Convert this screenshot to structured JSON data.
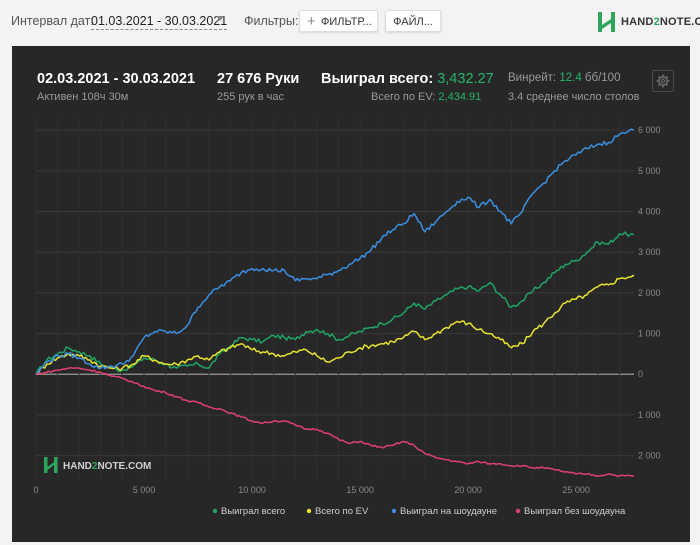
{
  "filters": {
    "date_label": "Интервал дат:",
    "date_range": "01.03.2021 - 30.03.2021",
    "filters_label": "Фильтры:",
    "filter_button": "ФИЛЬТР...",
    "file_button": "ФАЙЛ..."
  },
  "logo": {
    "pre": "HAND",
    "two": "2",
    "post": "NOTE.COM"
  },
  "stats": {
    "period": "02.03.2021 - 30.03.2021",
    "active": "Активен 108ч 30м",
    "hands": "27 676 Руки",
    "hands_per_hour": "255 рук в час",
    "won_total_label": "Выиграл всего:",
    "won_total_value": "3,432.27",
    "ev_label": "Всего по EV:",
    "ev_value": "2,434.91",
    "winrate_label": "Винрейт:",
    "winrate_value": "12.4",
    "winrate_unit": "бб/100",
    "tables_avg": "3.4 среднее число столов"
  },
  "icons": {
    "settings": "gear-icon",
    "plus": "plus-icon",
    "caret": "chevron-down-icon"
  },
  "watermark": {
    "pre": "HAND",
    "two": "2",
    "post": "NOTE.COM"
  },
  "chart_data": {
    "type": "line",
    "x_label": "",
    "y_label": "",
    "xlim": [
      0,
      27676
    ],
    "ylim": [
      -2600,
      6300
    ],
    "x_ticks": [
      0,
      5000,
      10000,
      15000,
      20000,
      25000
    ],
    "x_tick_labels": [
      "0",
      "5 000",
      "10 000",
      "15 000",
      "20 000",
      "25 000"
    ],
    "y_ticks": [
      6000,
      5000,
      4000,
      3000,
      2000,
      1000,
      0,
      -1000,
      -2000
    ],
    "y_tick_labels": [
      "6 000",
      "5 000",
      "4 000",
      "3 000",
      "2 000",
      "1 000",
      "0",
      "1 000",
      "2 000"
    ],
    "grid": true,
    "legend_position": "bottom",
    "series": [
      {
        "name": "Выиграл всего",
        "color": "#1fa463",
        "x": [
          0,
          500,
          1000,
          1500,
          2000,
          2500,
          3000,
          3500,
          4000,
          4500,
          5000,
          5500,
          6000,
          6500,
          7000,
          7500,
          8000,
          8500,
          9000,
          9500,
          10000,
          10500,
          11000,
          11500,
          12000,
          12500,
          13000,
          13500,
          14000,
          14500,
          15000,
          15500,
          16000,
          16500,
          17000,
          17500,
          18000,
          18500,
          19000,
          19500,
          20000,
          20500,
          21000,
          21500,
          22000,
          22500,
          23000,
          23500,
          24000,
          24500,
          25000,
          25500,
          26000,
          26500,
          27000,
          27676
        ],
        "y": [
          0,
          350,
          500,
          650,
          550,
          450,
          250,
          150,
          100,
          200,
          400,
          350,
          250,
          150,
          200,
          250,
          150,
          500,
          700,
          900,
          850,
          800,
          950,
          900,
          850,
          1050,
          1100,
          1000,
          850,
          950,
          1050,
          1150,
          1250,
          1350,
          1500,
          1750,
          1600,
          1800,
          1950,
          2100,
          2150,
          2050,
          2250,
          1950,
          1650,
          1800,
          2050,
          2250,
          2500,
          2700,
          2800,
          3000,
          3250,
          3200,
          3450,
          3432
        ]
      },
      {
        "name": "Всего по EV",
        "color": "#e6e32f",
        "x": [
          0,
          500,
          1000,
          1500,
          2000,
          2500,
          3000,
          3500,
          4000,
          4500,
          5000,
          5500,
          6000,
          6500,
          7000,
          7500,
          8000,
          8500,
          9000,
          9500,
          10000,
          10500,
          11000,
          11500,
          12000,
          12500,
          13000,
          13500,
          14000,
          14500,
          15000,
          15500,
          16000,
          16500,
          17000,
          17500,
          18000,
          18500,
          19000,
          19500,
          20000,
          20500,
          21000,
          21500,
          22000,
          22500,
          23000,
          23500,
          24000,
          24500,
          25000,
          25500,
          26000,
          26500,
          27000,
          27676
        ],
        "y": [
          0,
          250,
          400,
          500,
          450,
          350,
          200,
          150,
          150,
          250,
          450,
          350,
          250,
          250,
          350,
          450,
          350,
          550,
          650,
          750,
          600,
          550,
          500,
          450,
          550,
          600,
          450,
          300,
          400,
          550,
          650,
          700,
          750,
          800,
          900,
          1050,
          850,
          1000,
          1150,
          1300,
          1250,
          1100,
          1000,
          850,
          650,
          750,
          1050,
          1250,
          1500,
          1750,
          1850,
          1950,
          2150,
          2200,
          2350,
          2435
        ]
      },
      {
        "name": "Выиграл на шоудауне",
        "color": "#3b8fe0",
        "x": [
          0,
          500,
          1000,
          1500,
          2000,
          2500,
          3000,
          3500,
          4000,
          4500,
          5000,
          5500,
          6000,
          6500,
          7000,
          7500,
          8000,
          8500,
          9000,
          9500,
          10000,
          10500,
          11000,
          11500,
          12000,
          12500,
          13000,
          13500,
          14000,
          14500,
          15000,
          15500,
          16000,
          16500,
          17000,
          17500,
          18000,
          18500,
          19000,
          19500,
          20000,
          20500,
          21000,
          21500,
          22000,
          22500,
          23000,
          23500,
          24000,
          24500,
          25000,
          25500,
          26000,
          26500,
          27000,
          27676
        ],
        "y": [
          0,
          300,
          450,
          500,
          400,
          250,
          150,
          200,
          250,
          450,
          900,
          1050,
          1050,
          1000,
          1200,
          1650,
          1950,
          2150,
          2300,
          2500,
          2600,
          2600,
          2550,
          2550,
          2300,
          2350,
          2350,
          2450,
          2550,
          2700,
          2850,
          3050,
          3350,
          3550,
          3700,
          3950,
          3500,
          3750,
          4000,
          4250,
          4350,
          4100,
          4300,
          4000,
          3700,
          4000,
          4450,
          4700,
          5000,
          5250,
          5400,
          5550,
          5650,
          5700,
          5900,
          6000
        ]
      },
      {
        "name": "Выиграл без шоудауна",
        "color": "#e0406e",
        "x": [
          0,
          500,
          1000,
          1500,
          2000,
          2500,
          3000,
          3500,
          4000,
          4500,
          5000,
          5500,
          6000,
          6500,
          7000,
          7500,
          8000,
          8500,
          9000,
          9500,
          10000,
          10500,
          11000,
          11500,
          12000,
          12500,
          13000,
          13500,
          14000,
          14500,
          15000,
          15500,
          16000,
          16500,
          17000,
          17500,
          18000,
          18500,
          19000,
          19500,
          20000,
          20500,
          21000,
          21500,
          22000,
          22500,
          23000,
          23500,
          24000,
          24500,
          25000,
          25500,
          26000,
          26500,
          27000,
          27676
        ],
        "y": [
          0,
          50,
          100,
          150,
          150,
          100,
          50,
          -50,
          -100,
          -200,
          -300,
          -400,
          -450,
          -550,
          -650,
          -700,
          -800,
          -850,
          -950,
          -1050,
          -1150,
          -1200,
          -1150,
          -1150,
          -1250,
          -1350,
          -1350,
          -1450,
          -1600,
          -1700,
          -1650,
          -1750,
          -1800,
          -1750,
          -1650,
          -1750,
          -1950,
          -2050,
          -2100,
          -2150,
          -2200,
          -2150,
          -2200,
          -2200,
          -2250,
          -2250,
          -2300,
          -2300,
          -2350,
          -2400,
          -2450,
          -2450,
          -2500,
          -2450,
          -2500,
          -2500
        ]
      }
    ]
  }
}
